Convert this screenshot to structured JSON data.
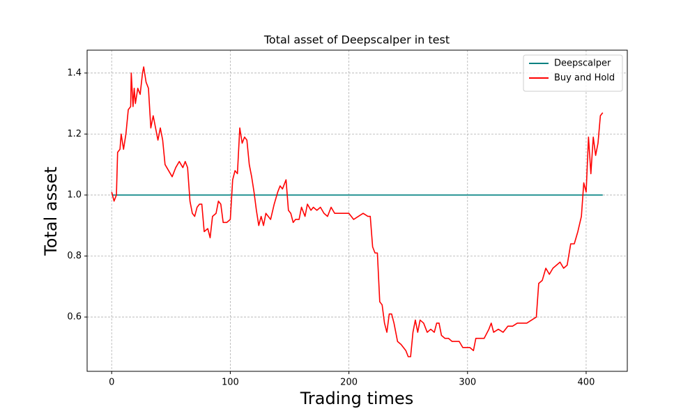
{
  "chart_data": {
    "type": "line",
    "title": "Total asset of Deepscalper in test",
    "xlabel": "Trading times",
    "ylabel": "Total asset",
    "xlim": [
      -20.7,
      434.7
    ],
    "ylim": [
      0.422,
      1.475
    ],
    "xticks": [
      0,
      100,
      200,
      300,
      400
    ],
    "yticks": [
      0.6,
      0.8,
      {
        "value": 1.0,
        "label": "1.0"
      },
      1.2,
      1.4
    ],
    "grid": true,
    "legend": "upper right",
    "series": [
      {
        "name": "Deepscalper",
        "color": "#008080",
        "x": [
          0,
          414
        ],
        "values": [
          1.0,
          1.0
        ]
      },
      {
        "name": "Buy and Hold",
        "color": "#ff0000",
        "x": [
          0,
          2,
          4,
          5,
          7,
          8,
          10,
          12,
          14,
          16,
          16.5,
          18,
          19,
          20,
          22,
          24,
          26,
          27,
          29,
          31,
          33,
          35,
          37,
          39,
          41,
          43,
          45,
          48,
          51,
          54,
          57,
          60,
          62,
          64,
          66,
          68,
          70,
          72,
          74,
          76,
          78,
          81,
          83,
          85,
          88,
          90,
          92,
          94,
          97,
          100,
          102,
          104,
          106,
          108,
          110,
          112,
          114,
          116,
          118,
          120,
          122,
          124,
          126,
          128,
          130,
          132,
          134,
          137,
          140,
          142,
          144,
          147,
          149,
          151,
          153,
          155,
          158,
          160,
          163,
          165,
          168,
          170,
          173,
          176,
          179,
          182,
          185,
          188,
          192,
          196,
          200,
          204,
          208,
          212,
          216,
          218,
          220,
          222,
          224,
          226,
          228,
          230,
          232,
          234,
          236,
          238,
          241,
          244,
          246,
          248,
          250,
          252,
          254,
          256,
          258,
          260,
          263,
          266,
          269,
          272,
          274,
          276,
          278,
          281,
          284,
          287,
          290,
          293,
          296,
          299,
          302,
          305,
          307,
          310,
          314,
          318,
          320,
          322,
          326,
          330,
          334,
          338,
          342,
          346,
          350,
          354,
          358,
          360,
          363,
          366,
          369,
          372,
          375,
          378,
          381,
          384,
          387,
          390,
          393,
          396,
          398,
          400,
          402,
          404,
          406,
          408,
          410,
          412,
          414
        ],
        "values": [
          1.01,
          0.98,
          1.0,
          1.14,
          1.15,
          1.2,
          1.15,
          1.2,
          1.28,
          1.29,
          1.4,
          1.29,
          1.35,
          1.3,
          1.35,
          1.33,
          1.4,
          1.42,
          1.37,
          1.35,
          1.22,
          1.26,
          1.22,
          1.18,
          1.22,
          1.18,
          1.1,
          1.08,
          1.06,
          1.09,
          1.11,
          1.09,
          1.11,
          1.09,
          0.98,
          0.94,
          0.93,
          0.96,
          0.97,
          0.97,
          0.88,
          0.89,
          0.86,
          0.93,
          0.94,
          0.98,
          0.97,
          0.91,
          0.91,
          0.92,
          1.05,
          1.08,
          1.07,
          1.22,
          1.17,
          1.19,
          1.18,
          1.1,
          1.06,
          1.01,
          0.95,
          0.9,
          0.93,
          0.9,
          0.94,
          0.93,
          0.92,
          0.97,
          1.01,
          1.03,
          1.02,
          1.05,
          0.95,
          0.94,
          0.91,
          0.92,
          0.92,
          0.96,
          0.93,
          0.97,
          0.95,
          0.96,
          0.95,
          0.96,
          0.94,
          0.93,
          0.96,
          0.94,
          0.94,
          0.94,
          0.94,
          0.92,
          0.93,
          0.94,
          0.93,
          0.93,
          0.83,
          0.81,
          0.81,
          0.65,
          0.64,
          0.58,
          0.55,
          0.61,
          0.61,
          0.58,
          0.52,
          0.51,
          0.5,
          0.49,
          0.47,
          0.47,
          0.55,
          0.59,
          0.55,
          0.59,
          0.58,
          0.55,
          0.56,
          0.55,
          0.58,
          0.58,
          0.54,
          0.53,
          0.53,
          0.52,
          0.52,
          0.52,
          0.5,
          0.5,
          0.5,
          0.49,
          0.53,
          0.53,
          0.53,
          0.56,
          0.58,
          0.55,
          0.56,
          0.55,
          0.57,
          0.57,
          0.58,
          0.58,
          0.58,
          0.59,
          0.6,
          0.71,
          0.72,
          0.76,
          0.74,
          0.76,
          0.77,
          0.78,
          0.76,
          0.77,
          0.84,
          0.84,
          0.88,
          0.93,
          1.04,
          1.01,
          1.19,
          1.07,
          1.19,
          1.13,
          1.17,
          1.26,
          1.27
        ]
      }
    ]
  }
}
